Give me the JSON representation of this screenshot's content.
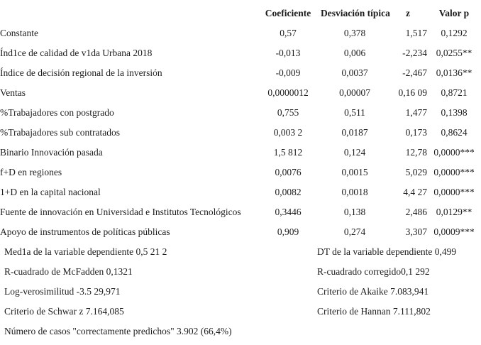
{
  "table": {
    "headers": {
      "coef": "Coeficiente",
      "std": "Desviación típica",
      "z": "z",
      "p": "Valor p"
    },
    "rows": [
      {
        "label": "Constante",
        "coef": "0,57",
        "std": "0,378",
        "z": "1,517",
        "p": "0,1292"
      },
      {
        "label": "Índ1ce de calidad de v1da Urbana 2018",
        "coef": "-0,013",
        "std": "0,006",
        "z": "-2,234",
        "p": "0,0255**"
      },
      {
        "label": "Índice de decisión regional de la inversión",
        "coef": "-0,009",
        "std": "0,0037",
        "z": "-2,467",
        "p": "0,0136**"
      },
      {
        "label": "Ventas",
        "coef": "0,0000012",
        "std": "0,00007",
        "z": "0,16 09",
        "p": "0,8721"
      },
      {
        "label": "%Trabajadores con postgrado",
        "coef": "0,755",
        "std": "0,511",
        "z": "1,477",
        "p": "0,1398"
      },
      {
        "label": "%Trabajadores sub contratados",
        "coef": "0,003 2",
        "std": "0,0187",
        "z": "0,173",
        "p": "0,8624"
      },
      {
        "label": "Binario Innovación pasada",
        "coef": "1,5 812",
        "std": "0,124",
        "z": "12,78",
        "p": "0,0000***"
      },
      {
        "label": "f+D en regiones",
        "coef": "0,0076",
        "std": "0,0015",
        "z": "5,029",
        "p": "0,0000***"
      },
      {
        "label": "1+D en la capital nacional",
        "coef": "0,0082",
        "std": "0,0018",
        "z": "4,4 27",
        "p": "0,0000***"
      },
      {
        "label": "Fuente de innovación en Universidad e Institutos Tecnológicos",
        "coef": "0,3446",
        "std": "0,138",
        "z": "2,486",
        "p": "0,0129**"
      },
      {
        "label": "Apoyo de instrumentos de políticas públicas",
        "coef": "0,909",
        "std": "0,274",
        "z": "3,307",
        "p": "0,0009***"
      }
    ]
  },
  "stats": {
    "pairs": [
      {
        "left": "Med1a de la variable dependiente 0,5 21 2",
        "right": "DT de la variable dependiente 0,499"
      },
      {
        "left": "R-cuadrado de McFadden 0,1321",
        "right": "R-cuadrado corregido0,1 292"
      },
      {
        "left": "Log-verosimilitud -3.5 29,971",
        "right": "Criterio de Akaike 7.083,941"
      },
      {
        "left": "Criterio de Schwar z 7.164,085",
        "right": "Criterio de Hannan 7.111,802"
      }
    ],
    "footer": "Número de casos \"correctamente predichos\" 3.902 (66,4%)"
  },
  "colors": {
    "text": "#1d1d1d",
    "background": "#ffffff"
  }
}
